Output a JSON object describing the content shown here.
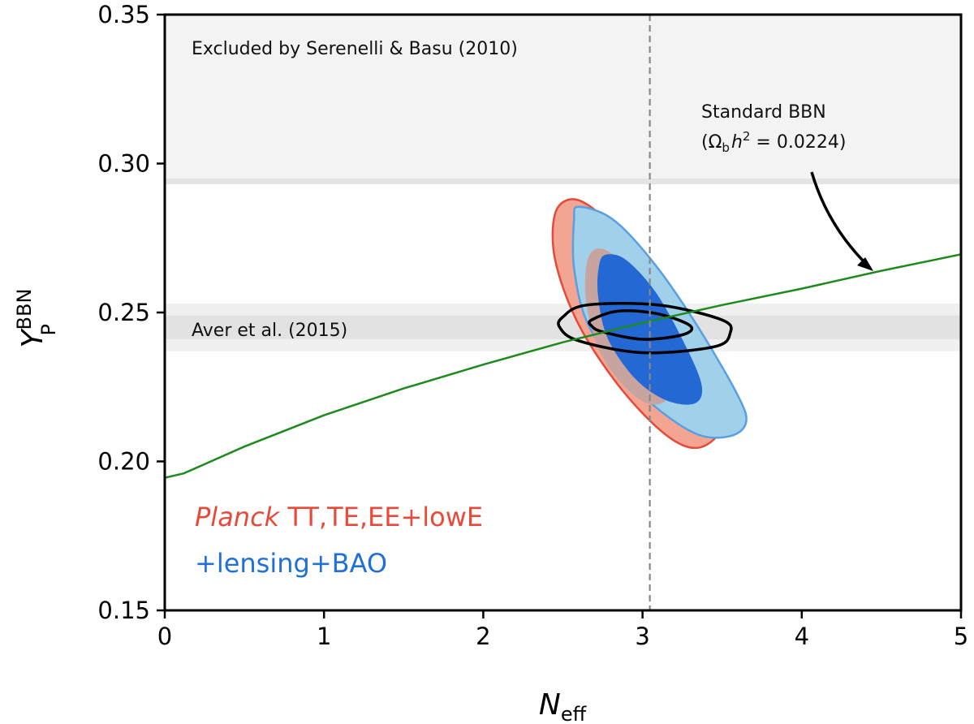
{
  "chart_data": {
    "type": "contour",
    "xlabel": {
      "main": "N",
      "sub": "eff"
    },
    "ylabel": {
      "main": "Y",
      "sup": "BBN",
      "sub": "P"
    },
    "xlim": [
      0,
      5
    ],
    "ylim": [
      0.15,
      0.35
    ],
    "xticks": [
      "0",
      "1",
      "2",
      "3",
      "4",
      "5"
    ],
    "yticks": [
      "0.15",
      "0.20",
      "0.25",
      "0.30",
      "0.35"
    ],
    "bands": [
      {
        "name": "Excluded by Serenelli & Basu (2010)",
        "ymin": 0.294,
        "ymax": 0.35,
        "color": "#f3f3f3"
      },
      {
        "name": "Aver et al. (2015)",
        "ymin_outer": 0.237,
        "ymax_outer": 0.253,
        "ymin_inner": 0.241,
        "ymax_inner": 0.249,
        "color_outer": "#f0f0f0",
        "color_inner": "#e2e2e2"
      }
    ],
    "vline": {
      "x": 3.046,
      "style": "dashed",
      "color": "#888888"
    },
    "series": [
      {
        "name": "Standard BBN",
        "color": "#1e8a1e",
        "x": [
          0,
          0.12,
          0.5,
          1,
          1.5,
          2,
          2.5,
          3,
          3.5,
          4,
          4.5,
          5
        ],
        "y": [
          0.1945,
          0.196,
          0.205,
          0.2155,
          0.2245,
          0.2325,
          0.24,
          0.2465,
          0.2525,
          0.258,
          0.264,
          0.2695
        ]
      }
    ],
    "contours": [
      {
        "name": "Planck TT,TE,EE+lowE",
        "color": "#e44a3a",
        "fills": [
          "#f2a593",
          "#c7a4a0"
        ],
        "center": [
          2.95,
          0.2455
        ],
        "outer_points": [
          [
            2.55,
            0.288
          ],
          [
            2.7,
            0.2845
          ],
          [
            2.95,
            0.272
          ],
          [
            3.2,
            0.252
          ],
          [
            3.42,
            0.228
          ],
          [
            3.5,
            0.213
          ],
          [
            3.4,
            0.2055
          ],
          [
            3.25,
            0.2055
          ],
          [
            3.05,
            0.2135
          ],
          [
            2.8,
            0.229
          ],
          [
            2.58,
            0.248
          ],
          [
            2.45,
            0.268
          ],
          [
            2.45,
            0.283
          ]
        ],
        "inner_points": [
          [
            2.72,
            0.2715
          ],
          [
            2.85,
            0.268
          ],
          [
            3.05,
            0.256
          ],
          [
            3.22,
            0.239
          ],
          [
            3.25,
            0.229
          ],
          [
            3.12,
            0.2195
          ],
          [
            2.95,
            0.222
          ],
          [
            2.75,
            0.235
          ],
          [
            2.65,
            0.252
          ],
          [
            2.65,
            0.2665
          ]
        ]
      },
      {
        "name": "+lensing+BAO",
        "color": "#2b72d6",
        "fills": [
          "#a0d0ea",
          "#2468d4"
        ],
        "center": [
          2.95,
          0.2455
        ],
        "outer_points": [
          [
            2.6,
            0.2855
          ],
          [
            2.82,
            0.281
          ],
          [
            3.08,
            0.266
          ],
          [
            3.35,
            0.245
          ],
          [
            3.6,
            0.222
          ],
          [
            3.65,
            0.213
          ],
          [
            3.55,
            0.2085
          ],
          [
            3.35,
            0.209
          ],
          [
            3.1,
            0.2175
          ],
          [
            2.85,
            0.2305
          ],
          [
            2.65,
            0.247
          ],
          [
            2.57,
            0.265
          ],
          [
            2.57,
            0.281
          ]
        ],
        "inner_points": [
          [
            2.78,
            0.2695
          ],
          [
            2.9,
            0.2675
          ],
          [
            3.08,
            0.257
          ],
          [
            3.25,
            0.241
          ],
          [
            3.37,
            0.226
          ],
          [
            3.33,
            0.2195
          ],
          [
            3.15,
            0.2205
          ],
          [
            2.95,
            0.228
          ],
          [
            2.78,
            0.2415
          ],
          [
            2.72,
            0.256
          ],
          [
            2.73,
            0.2665
          ]
        ]
      },
      {
        "name": "Aver et al. (2015) posterior",
        "color": "#000000",
        "fills": [],
        "center": [
          3.1,
          0.2453
        ],
        "outer_points": [
          [
            2.5,
            0.2485
          ],
          [
            2.65,
            0.2525
          ],
          [
            3.1,
            0.2525
          ],
          [
            3.5,
            0.2475
          ],
          [
            3.55,
            0.243
          ],
          [
            3.45,
            0.2385
          ],
          [
            3.0,
            0.2365
          ],
          [
            2.6,
            0.2405
          ],
          [
            2.48,
            0.245
          ]
        ],
        "inner_points": [
          [
            2.68,
            0.2475
          ],
          [
            2.85,
            0.2505
          ],
          [
            3.1,
            0.2495
          ],
          [
            3.3,
            0.2455
          ],
          [
            3.25,
            0.2425
          ],
          [
            3.0,
            0.241
          ],
          [
            2.75,
            0.2435
          ],
          [
            2.68,
            0.2455
          ]
        ]
      }
    ],
    "annotations": [
      {
        "text": "Excluded by Serenelli & Basu (2010)"
      },
      {
        "text": "Aver et al. (2015)"
      },
      {
        "line1": "Standard BBN",
        "omega": "Ω",
        "omega_sub": "b",
        "h": "h",
        "h_sup": "2",
        "value": " = 0.0224"
      }
    ],
    "legend": {
      "line1_italic": "Planck",
      "line1_rest": " TT,TE,EE+lowE",
      "line2": "+lensing+BAO",
      "color1": "#e84a3a",
      "color2": "#2070d8"
    },
    "grid": false
  }
}
